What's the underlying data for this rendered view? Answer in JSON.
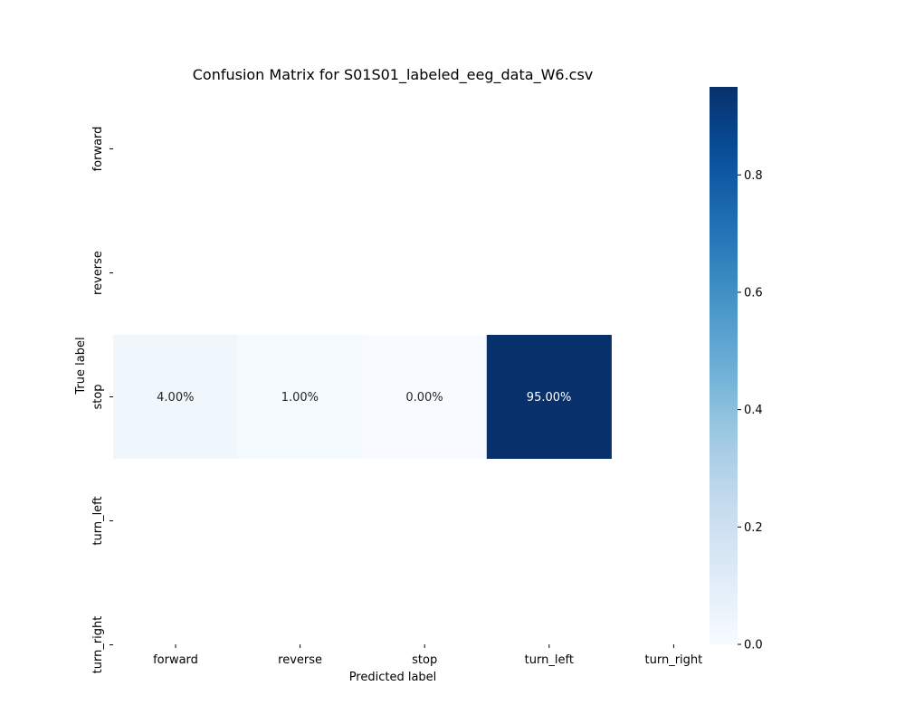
{
  "chart_data": {
    "type": "heatmap",
    "title": "Confusion Matrix for S01S01_labeled_eeg_data_W6.csv",
    "xlabel": "Predicted label",
    "ylabel": "True label",
    "x_categories": [
      "forward",
      "reverse",
      "stop",
      "turn_left",
      "turn_right"
    ],
    "y_categories": [
      "forward",
      "reverse",
      "stop",
      "turn_left",
      "turn_right"
    ],
    "values": [
      [
        null,
        null,
        null,
        null,
        null
      ],
      [
        null,
        null,
        null,
        null,
        null
      ],
      [
        0.04,
        0.01,
        0.0,
        0.95,
        null
      ],
      [
        null,
        null,
        null,
        null,
        null
      ],
      [
        null,
        null,
        null,
        null,
        null
      ]
    ],
    "annotations": [
      [
        null,
        null,
        null,
        null,
        null
      ],
      [
        null,
        null,
        null,
        null,
        null
      ],
      [
        "4.00%",
        "1.00%",
        "0.00%",
        "95.00%",
        null
      ],
      [
        null,
        null,
        null,
        null,
        null
      ],
      [
        null,
        null,
        null,
        null,
        null
      ]
    ],
    "colormap": "Blues",
    "colorbar": {
      "range": [
        0,
        0.95
      ],
      "ticks": [
        "0.0",
        "0.2",
        "0.4",
        "0.6",
        "0.8"
      ],
      "tick_values": [
        0,
        0.2,
        0.4,
        0.6,
        0.8
      ]
    },
    "grid": false
  }
}
